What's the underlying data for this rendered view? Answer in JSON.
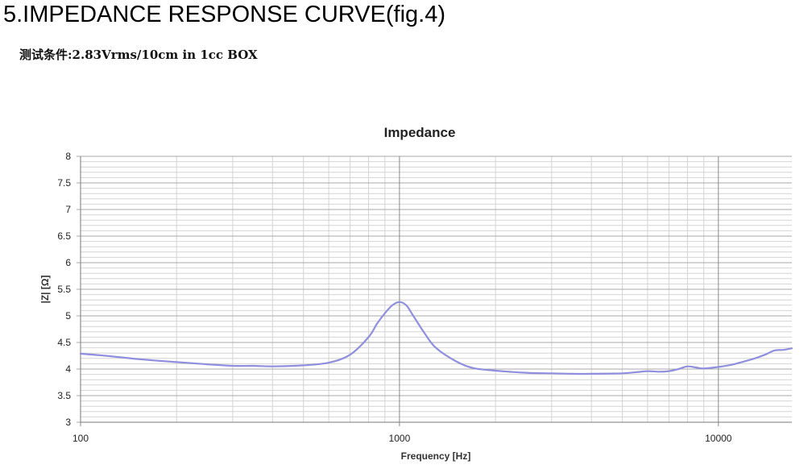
{
  "heading": "5.IMPEDANCE RESPONSE CURVE(fig.4)",
  "conditions": "测试条件:2.83Vrms/10cm in 1cc BOX",
  "chart_data": {
    "type": "line",
    "title": "Impedance",
    "xlabel": "Frequency [Hz]",
    "ylabel": "|Z| [Ω]",
    "xscale": "log",
    "xlim": [
      100,
      17000
    ],
    "ylim": [
      3,
      8
    ],
    "x_ticks": [
      100,
      1000,
      10000
    ],
    "x_tick_labels": [
      "100",
      "1000",
      "10000"
    ],
    "y_ticks": [
      3,
      3.5,
      4,
      4.5,
      5,
      5.5,
      6,
      6.5,
      7,
      7.5,
      8
    ],
    "y_tick_labels": [
      "3",
      "3.5",
      "4",
      "4.5",
      "5",
      "5.5",
      "6",
      "6.5",
      "7",
      "7.5",
      "8"
    ],
    "grid": true,
    "line_color": "#8f8fde",
    "series": [
      {
        "name": "",
        "x": [
          100,
          120,
          150,
          200,
          250,
          300,
          350,
          400,
          500,
          600,
          700,
          800,
          850,
          900,
          950,
          1000,
          1050,
          1100,
          1200,
          1300,
          1500,
          1700,
          2000,
          2500,
          3000,
          3500,
          4000,
          5000,
          5500,
          6000,
          6500,
          7000,
          7500,
          8000,
          8500,
          9000,
          10000,
          11000,
          12000,
          13000,
          14000,
          15000,
          16000,
          17000
        ],
        "y": [
          4.29,
          4.25,
          4.19,
          4.13,
          4.09,
          4.06,
          4.06,
          4.05,
          4.07,
          4.12,
          4.27,
          4.6,
          4.85,
          5.05,
          5.2,
          5.26,
          5.2,
          5.02,
          4.67,
          4.4,
          4.15,
          4.02,
          3.97,
          3.93,
          3.92,
          3.91,
          3.91,
          3.92,
          3.94,
          3.96,
          3.95,
          3.96,
          4.0,
          4.05,
          4.03,
          4.01,
          4.04,
          4.08,
          4.14,
          4.2,
          4.27,
          4.35,
          4.36,
          4.39
        ]
      }
    ]
  }
}
